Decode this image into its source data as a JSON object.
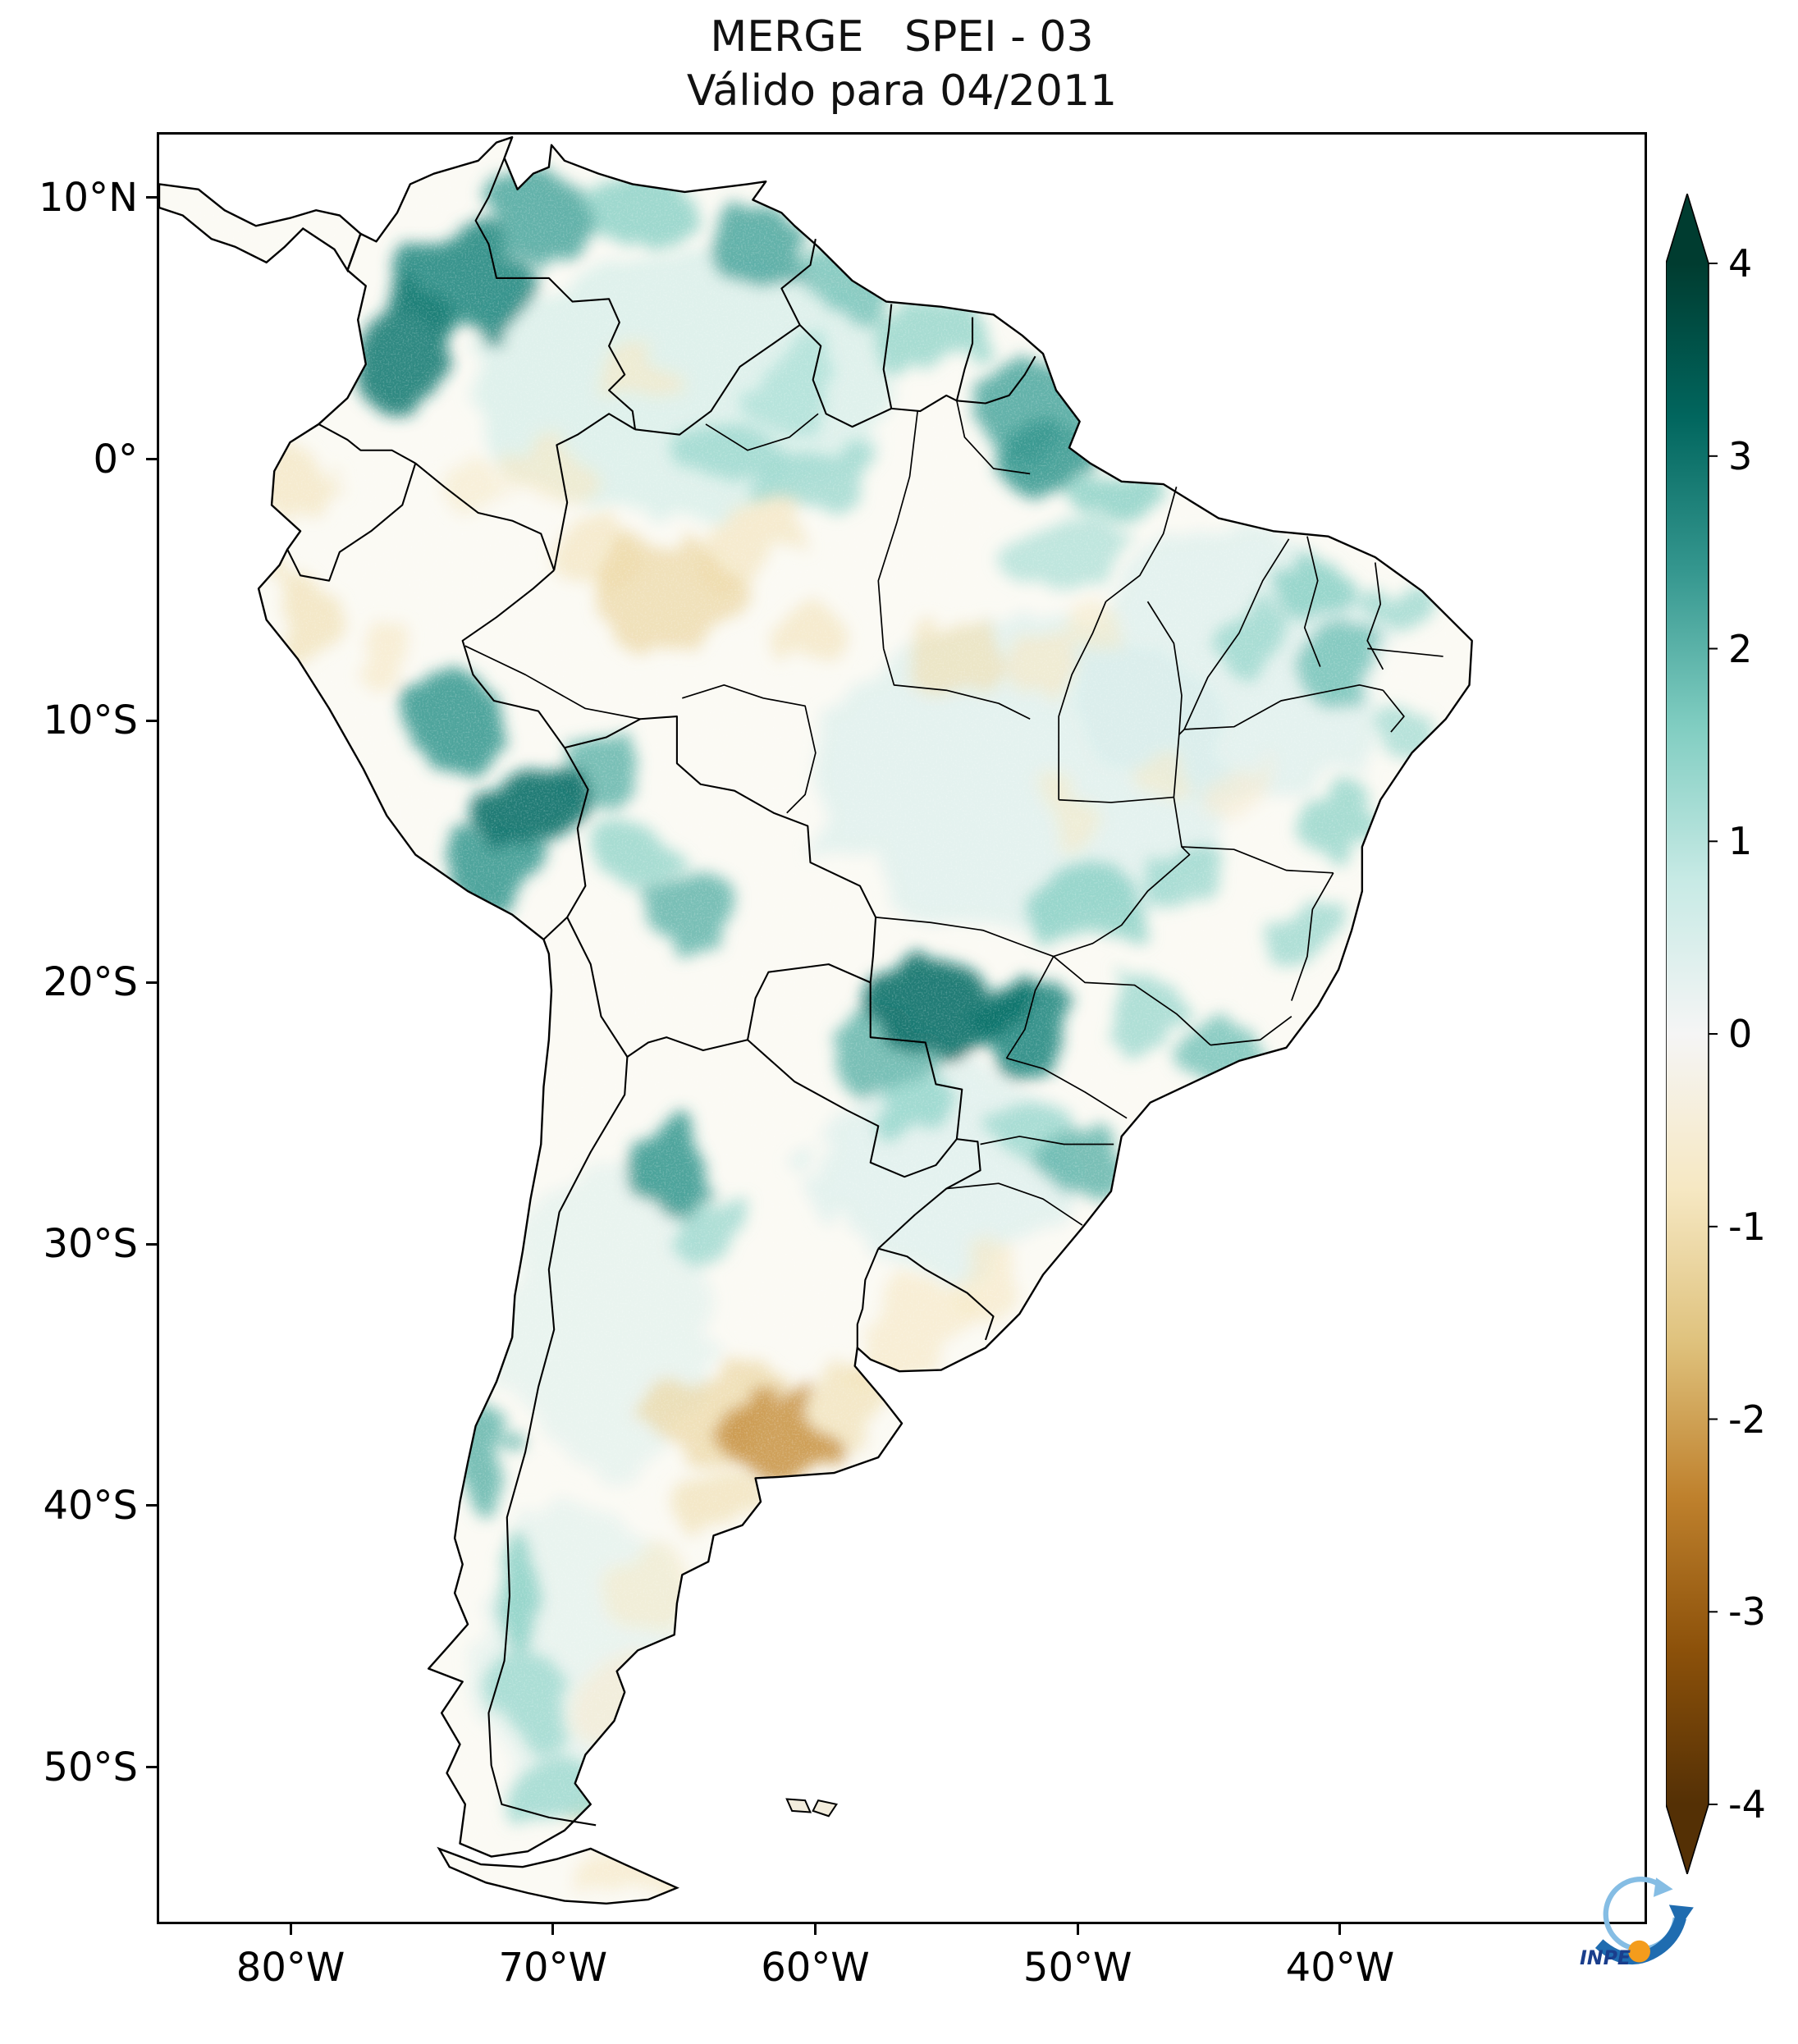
{
  "figure": {
    "title_line1": "MERGE   SPEI - 03",
    "title_line2": "Válido para 04/2011"
  },
  "axes": {
    "y_ticks": [
      {
        "label": "10°N",
        "lat": 10
      },
      {
        "label": "0°",
        "lat": 0
      },
      {
        "label": "10°S",
        "lat": -10
      },
      {
        "label": "20°S",
        "lat": -20
      },
      {
        "label": "30°S",
        "lat": -30
      },
      {
        "label": "40°S",
        "lat": -40
      },
      {
        "label": "50°S",
        "lat": -50
      }
    ],
    "x_ticks": [
      {
        "label": "80°W",
        "lon": -80
      },
      {
        "label": "70°W",
        "lon": -70
      },
      {
        "label": "60°W",
        "lon": -60
      },
      {
        "label": "50°W",
        "lon": -50
      },
      {
        "label": "40°W",
        "lon": -40
      }
    ]
  },
  "colorbar": {
    "min": -4,
    "max": 4,
    "ticks": [
      "4",
      "3",
      "2",
      "1",
      "0",
      "-1",
      "-2",
      "-3",
      "-4"
    ],
    "extend": "both",
    "colormap_name": "BrBG",
    "stops": [
      "#543005",
      "#8c510a",
      "#bf812d",
      "#dfc27d",
      "#f6e8c3",
      "#f5f5f5",
      "#c7eae5",
      "#80cdc1",
      "#35978f",
      "#01665e",
      "#003c30"
    ]
  },
  "logo": {
    "label": "INPE"
  },
  "chart_data": {
    "type": "heatmap",
    "title": "MERGE SPEI - 03",
    "subtitle": "Válido para 04/2011",
    "product": "MERGE",
    "index": "SPEI - 03",
    "valid_for": "04/2011",
    "xlabel": "",
    "ylabel": "",
    "colorbar_range": [
      -4,
      4
    ],
    "colorbar_ticks": [
      4,
      3,
      2,
      1,
      0,
      -1,
      -2,
      -3,
      -4
    ],
    "map_extent": {
      "lon_min": -85.1,
      "lon_max": -28.3,
      "lat_min": -56.0,
      "lat_max": 12.5
    },
    "regions": [
      {
        "name": "north-south-america-wash",
        "lon": -65.0,
        "lat": 3.0,
        "spei": 0.7,
        "rx": 8.0,
        "ry": 5.0
      },
      {
        "name": "central-brazil-wash",
        "lon": -52.0,
        "lat": -12.0,
        "spei": 0.55,
        "rx": 8.0,
        "ry": 6.0
      },
      {
        "name": "northeast-brazil-wash",
        "lon": -44.0,
        "lat": -8.0,
        "spei": 0.55,
        "rx": 6.0,
        "ry": 5.0
      },
      {
        "name": "south-brazil-wash",
        "lon": -55.0,
        "lat": -27.0,
        "spei": 0.55,
        "rx": 5.0,
        "ry": 4.0
      },
      {
        "name": "west-argentina-wash",
        "lon": -68.0,
        "lat": -33.0,
        "spei": 0.45,
        "rx": 4.0,
        "ry": 6.0
      },
      {
        "name": "patagonia-wash",
        "lon": -69.0,
        "lat": -46.0,
        "spei": 0.45,
        "rx": 4.0,
        "ry": 6.0
      },
      {
        "name": "north-colombia",
        "lon": -73.5,
        "lat": 6.5,
        "spei": 2.6,
        "rx": 2.8,
        "ry": 2.2
      },
      {
        "name": "colombia-andes",
        "lon": -75.8,
        "lat": 4.2,
        "spei": 2.8,
        "rx": 1.8,
        "ry": 2.2
      },
      {
        "name": "nw-venezuela",
        "lon": -70.5,
        "lat": 9.3,
        "spei": 2.2,
        "rx": 2.0,
        "ry": 1.5
      },
      {
        "name": "venezuela-coast",
        "lon": -66.5,
        "lat": 9.5,
        "spei": 1.6,
        "rx": 2.2,
        "ry": 1.2
      },
      {
        "name": "orinoco-delta",
        "lon": -61.8,
        "lat": 8.2,
        "spei": 2.2,
        "rx": 1.8,
        "ry": 1.6
      },
      {
        "name": "guyana",
        "lon": -58.8,
        "lat": 6.5,
        "spei": 1.8,
        "rx": 1.8,
        "ry": 1.5
      },
      {
        "name": "suriname",
        "lon": -55.5,
        "lat": 4.8,
        "spei": 1.5,
        "rx": 2.2,
        "ry": 1.5
      },
      {
        "name": "amapa",
        "lon": -52.0,
        "lat": 2.0,
        "spei": 2.2,
        "rx": 1.8,
        "ry": 1.8
      },
      {
        "name": "amazon-mouth",
        "lon": -50.8,
        "lat": 0.2,
        "spei": 2.4,
        "rx": 1.4,
        "ry": 1.4
      },
      {
        "name": "ne-para",
        "lon": -48.5,
        "lat": -1.2,
        "spei": 1.6,
        "rx": 1.8,
        "ry": 1.2
      },
      {
        "name": "central-amazon-north",
        "lon": -60.5,
        "lat": -0.8,
        "spei": 1.4,
        "rx": 2.2,
        "ry": 1.4
      },
      {
        "name": "upper-rio-negro",
        "lon": -63.5,
        "lat": 0.5,
        "spei": 1.4,
        "rx": 1.8,
        "ry": 1.2
      },
      {
        "name": "roraima",
        "lon": -60.5,
        "lat": 2.8,
        "spei": 1.2,
        "rx": 1.5,
        "ry": 1.5
      },
      {
        "name": "lower-amazon",
        "lon": -50.5,
        "lat": -3.5,
        "spei": 1.2,
        "rx": 2.0,
        "ry": 1.3
      },
      {
        "name": "central-peru",
        "lon": -73.8,
        "lat": -9.8,
        "spei": 2.4,
        "rx": 1.6,
        "ry": 1.6
      },
      {
        "name": "peru-bolivia-andes",
        "lon": -70.8,
        "lat": -13.2,
        "spei": 3.0,
        "rx": 2.2,
        "ry": 1.8
      },
      {
        "name": "south-peru",
        "lon": -72.5,
        "lat": -15.5,
        "spei": 2.4,
        "rx": 1.6,
        "ry": 1.3
      },
      {
        "name": "madre-de-dios",
        "lon": -68.5,
        "lat": -12.0,
        "spei": 2.0,
        "rx": 1.6,
        "ry": 1.4
      },
      {
        "name": "central-bolivia",
        "lon": -64.8,
        "lat": -17.5,
        "spei": 2.0,
        "rx": 1.8,
        "ry": 1.5
      },
      {
        "name": "bolivia-altiplano",
        "lon": -66.5,
        "lat": -15.0,
        "spei": 1.5,
        "rx": 1.5,
        "ry": 1.3
      },
      {
        "name": "mato-grosso-do-sul",
        "lon": -55.0,
        "lat": -20.8,
        "spei": 3.0,
        "rx": 2.8,
        "ry": 2.0
      },
      {
        "name": "west-sao-paulo",
        "lon": -52.2,
        "lat": -21.8,
        "spei": 2.6,
        "rx": 2.0,
        "ry": 1.6
      },
      {
        "name": "north-paraguay",
        "lon": -57.5,
        "lat": -22.5,
        "spei": 2.0,
        "rx": 1.6,
        "ry": 1.4
      },
      {
        "name": "east-paraguay",
        "lon": -56.4,
        "lat": -24.8,
        "spei": 1.5,
        "rx": 1.3,
        "ry": 1.3
      },
      {
        "name": "goias",
        "lon": -49.5,
        "lat": -17.0,
        "spei": 1.6,
        "rx": 2.0,
        "ry": 1.6
      },
      {
        "name": "west-minas",
        "lon": -45.8,
        "lat": -16.0,
        "spei": 1.4,
        "rx": 1.6,
        "ry": 1.3
      },
      {
        "name": "north-sao-paulo",
        "lon": -47.5,
        "lat": -21.0,
        "spei": 1.4,
        "rx": 1.6,
        "ry": 1.3
      },
      {
        "name": "ceara-piaui",
        "lon": -41.0,
        "lat": -5.0,
        "spei": 1.6,
        "rx": 1.6,
        "ry": 1.3
      },
      {
        "name": "south-piaui",
        "lon": -43.5,
        "lat": -6.5,
        "spei": 1.4,
        "rx": 1.4,
        "ry": 1.2
      },
      {
        "name": "pernambuco-interior",
        "lon": -39.8,
        "lat": -7.8,
        "spei": 1.8,
        "rx": 1.4,
        "ry": 1.2
      },
      {
        "name": "rn-paraiba",
        "lon": -38.0,
        "lat": -5.5,
        "spei": 1.4,
        "rx": 1.3,
        "ry": 1.1
      },
      {
        "name": "sergipe-coast",
        "lon": -37.5,
        "lat": -10.5,
        "spei": 1.3,
        "rx": 1.0,
        "ry": 1.2
      },
      {
        "name": "bahia-coast",
        "lon": -39.8,
        "lat": -13.8,
        "spei": 1.5,
        "rx": 1.2,
        "ry": 1.6
      },
      {
        "name": "east-minas",
        "lon": -41.8,
        "lat": -18.0,
        "spei": 1.4,
        "rx": 1.3,
        "ry": 1.3
      },
      {
        "name": "rio-de-janeiro",
        "lon": -44.3,
        "lat": -22.5,
        "spei": 1.8,
        "rx": 1.5,
        "ry": 1.0
      },
      {
        "name": "santa-catarina",
        "lon": -49.8,
        "lat": -27.0,
        "spei": 2.0,
        "rx": 1.6,
        "ry": 1.2
      },
      {
        "name": "parana",
        "lon": -51.8,
        "lat": -25.8,
        "spei": 1.4,
        "rx": 1.4,
        "ry": 1.1
      },
      {
        "name": "nw-argentina",
        "lon": -65.6,
        "lat": -26.8,
        "spei": 2.4,
        "rx": 1.5,
        "ry": 1.8
      },
      {
        "name": "cordoba-sierras",
        "lon": -64.3,
        "lat": -29.5,
        "spei": 1.4,
        "rx": 1.4,
        "ry": 1.5
      },
      {
        "name": "south-chile",
        "lon": -72.6,
        "lat": -38.5,
        "spei": 2.0,
        "rx": 1.0,
        "ry": 2.2
      },
      {
        "name": "north-patagonia-andes",
        "lon": -71.5,
        "lat": -43.5,
        "spei": 1.6,
        "rx": 1.0,
        "ry": 2.2
      },
      {
        "name": "central-patagonia-andes",
        "lon": -70.8,
        "lat": -47.5,
        "spei": 1.4,
        "rx": 1.2,
        "ry": 2.0
      },
      {
        "name": "santa-cruz",
        "lon": -69.8,
        "lat": -50.8,
        "spei": 1.4,
        "rx": 1.4,
        "ry": 1.3
      },
      {
        "name": "west-amazon",
        "lon": -65.5,
        "lat": -5.0,
        "spei": -1.2,
        "rx": 3.0,
        "ry": 2.2
      },
      {
        "name": "mid-amazon",
        "lon": -62.5,
        "lat": -3.0,
        "spei": -0.9,
        "rx": 2.0,
        "ry": 1.5
      },
      {
        "name": "upper-amazon",
        "lon": -68.5,
        "lat": -3.5,
        "spei": -0.9,
        "rx": 1.8,
        "ry": 1.5
      },
      {
        "name": "madeira",
        "lon": -60.2,
        "lat": -6.8,
        "spei": -0.9,
        "rx": 1.5,
        "ry": 1.2
      },
      {
        "name": "tapajos",
        "lon": -54.8,
        "lat": -7.5,
        "spei": -1.0,
        "rx": 1.8,
        "ry": 1.3
      },
      {
        "name": "xingu",
        "lon": -51.5,
        "lat": -8.0,
        "spei": -0.8,
        "rx": 1.5,
        "ry": 1.2
      },
      {
        "name": "tocantins-para",
        "lon": -49.5,
        "lat": -6.5,
        "spei": -0.7,
        "rx": 1.3,
        "ry": 1.1
      },
      {
        "name": "north-peru-coast",
        "lon": -79.8,
        "lat": -6.0,
        "spei": -1.0,
        "rx": 1.0,
        "ry": 1.8
      },
      {
        "name": "ecuador-coast",
        "lon": -80.0,
        "lat": -1.0,
        "spei": -0.9,
        "rx": 1.0,
        "ry": 1.5
      },
      {
        "name": "peru-interior",
        "lon": -76.5,
        "lat": -7.5,
        "spei": -0.8,
        "rx": 1.2,
        "ry": 1.5
      },
      {
        "name": "se-colombia",
        "lon": -70.0,
        "lat": 0.0,
        "spei": -0.8,
        "rx": 1.5,
        "ry": 1.2
      },
      {
        "name": "south-venezuela",
        "lon": -67.0,
        "lat": 3.0,
        "spei": -0.8,
        "rx": 1.5,
        "ry": 1.2
      },
      {
        "name": "caqueta",
        "lon": -73.0,
        "lat": -1.0,
        "spei": -0.7,
        "rx": 1.5,
        "ry": 1.2
      },
      {
        "name": "pampas-core",
        "lon": -61.5,
        "lat": -37.3,
        "spei": -2.2,
        "rx": 2.2,
        "ry": 1.5
      },
      {
        "name": "la-pampa",
        "lon": -64.0,
        "lat": -36.5,
        "spei": -1.2,
        "rx": 2.5,
        "ry": 2.0
      },
      {
        "name": "buenos-aires-coast",
        "lon": -58.8,
        "lat": -36.0,
        "spei": -1.0,
        "rx": 1.8,
        "ry": 1.5
      },
      {
        "name": "uruguay",
        "lon": -56.2,
        "lat": -33.0,
        "spei": -0.8,
        "rx": 2.2,
        "ry": 1.8
      },
      {
        "name": "rio-grande-border",
        "lon": -53.8,
        "lat": -31.5,
        "spei": -0.8,
        "rx": 1.5,
        "ry": 1.3
      },
      {
        "name": "la-plata",
        "lon": -58.0,
        "lat": -34.8,
        "spei": -0.8,
        "rx": 1.2,
        "ry": 0.8
      },
      {
        "name": "rio-negro-arg",
        "lon": -63.5,
        "lat": -39.8,
        "spei": -1.0,
        "rx": 1.5,
        "ry": 1.0
      },
      {
        "name": "chubut-coast",
        "lon": -66.5,
        "lat": -43.5,
        "spei": -0.7,
        "rx": 1.5,
        "ry": 2.0
      },
      {
        "name": "deseado",
        "lon": -67.8,
        "lat": -47.5,
        "spei": -0.6,
        "rx": 1.3,
        "ry": 1.5
      },
      {
        "name": "magallanes",
        "lon": -68.0,
        "lat": -52.0,
        "spei": -0.8,
        "rx": 2.0,
        "ry": 1.0
      },
      {
        "name": "tierra-del-fuego",
        "lon": -67.0,
        "lat": -54.3,
        "spei": -0.8,
        "rx": 2.0,
        "ry": 0.8
      },
      {
        "name": "west-bahia",
        "lon": -47.0,
        "lat": -12.0,
        "spei": -0.7,
        "rx": 1.3,
        "ry": 1.1
      },
      {
        "name": "central-bahia",
        "lon": -44.0,
        "lat": -12.8,
        "spei": -0.6,
        "rx": 1.2,
        "ry": 1.0
      },
      {
        "name": "east-mato-grosso",
        "lon": -50.0,
        "lat": -13.5,
        "spei": -0.7,
        "rx": 1.2,
        "ry": 1.0
      }
    ]
  }
}
